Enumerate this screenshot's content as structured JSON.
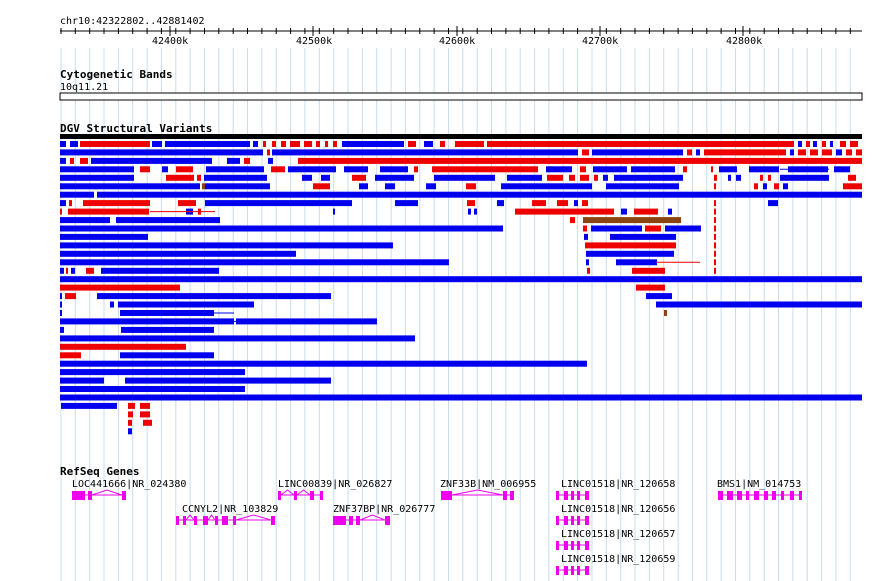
{
  "region": "chr10:42322802..42881402",
  "ruler": {
    "ticks": [
      "42400k",
      "42500k",
      "42600k",
      "42700k",
      "42800k"
    ]
  },
  "cytoband": {
    "title": "Cytogenetic Bands",
    "band_name": "10q11.21"
  },
  "dgv": {
    "title": "DGV Structural Variants"
  },
  "refseq": {
    "title": "RefSeq Genes",
    "genes": [
      {
        "label": "LOC441666|NR_024380"
      },
      {
        "label": "CCNYL2|NR_103829"
      },
      {
        "label": "LINC00839|NR_026827"
      },
      {
        "label": "ZNF37BP|NR_026777"
      },
      {
        "label": "ZNF33B|NM_006955"
      },
      {
        "label": "LINC01518|NR_120658"
      },
      {
        "label": "LINC01518|NR_120656"
      },
      {
        "label": "LINC01518|NR_120657"
      },
      {
        "label": "LINC01518|NR_120659"
      },
      {
        "label": "BMS1|NM_014753"
      }
    ]
  },
  "colors": {
    "gain": "#0000ee",
    "loss": "#ee0000",
    "complex": "#8b4513",
    "gene": "#ee00ee",
    "grid": "#c8dcf0",
    "track_bar": "#000000"
  }
}
